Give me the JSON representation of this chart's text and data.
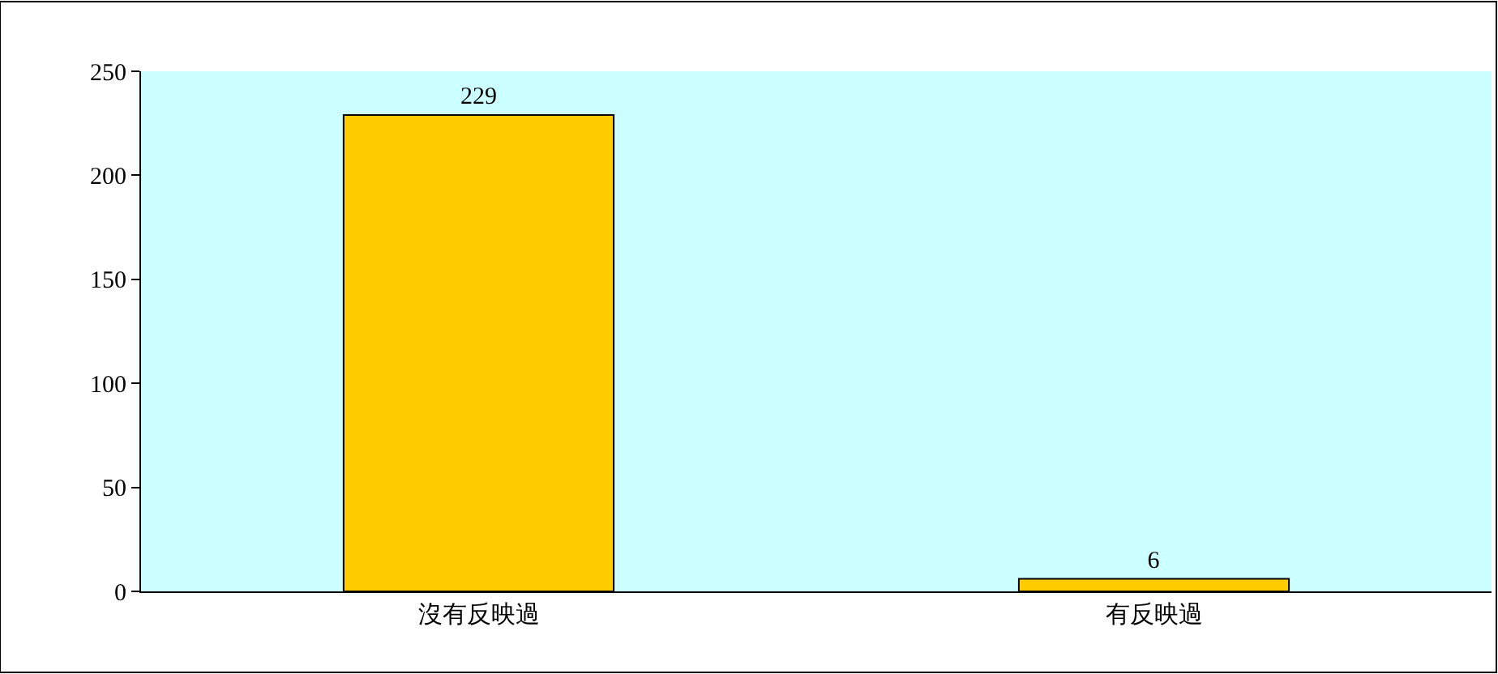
{
  "chart_data": {
    "type": "bar",
    "categories": [
      "沒有反映過",
      "有反映過"
    ],
    "values": [
      229,
      6
    ],
    "color": "#ffcc00",
    "ylim": [
      0,
      250
    ],
    "yticks": [
      0,
      50,
      100,
      150,
      200,
      250
    ],
    "data_labels": true
  }
}
